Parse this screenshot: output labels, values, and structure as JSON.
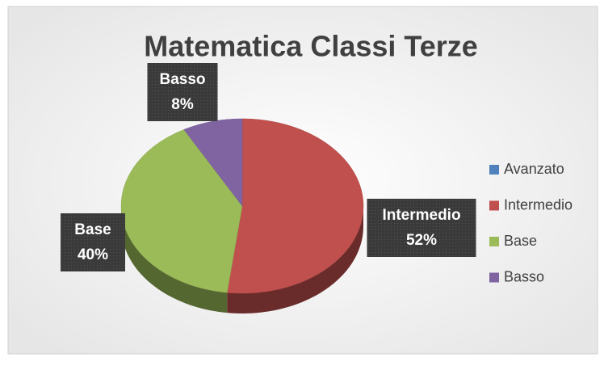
{
  "chart_data": {
    "type": "pie",
    "title": "Matematica Classi Terze",
    "categories": [
      "Avanzato",
      "Intermedio",
      "Base",
      "Basso"
    ],
    "values": [
      0,
      52,
      40,
      8
    ],
    "value_labels": [
      null,
      "52%",
      "40%",
      "8%"
    ],
    "colors": [
      "#4f81bd",
      "#c0504d",
      "#9bbb59",
      "#8064a2"
    ],
    "legend": "right"
  }
}
